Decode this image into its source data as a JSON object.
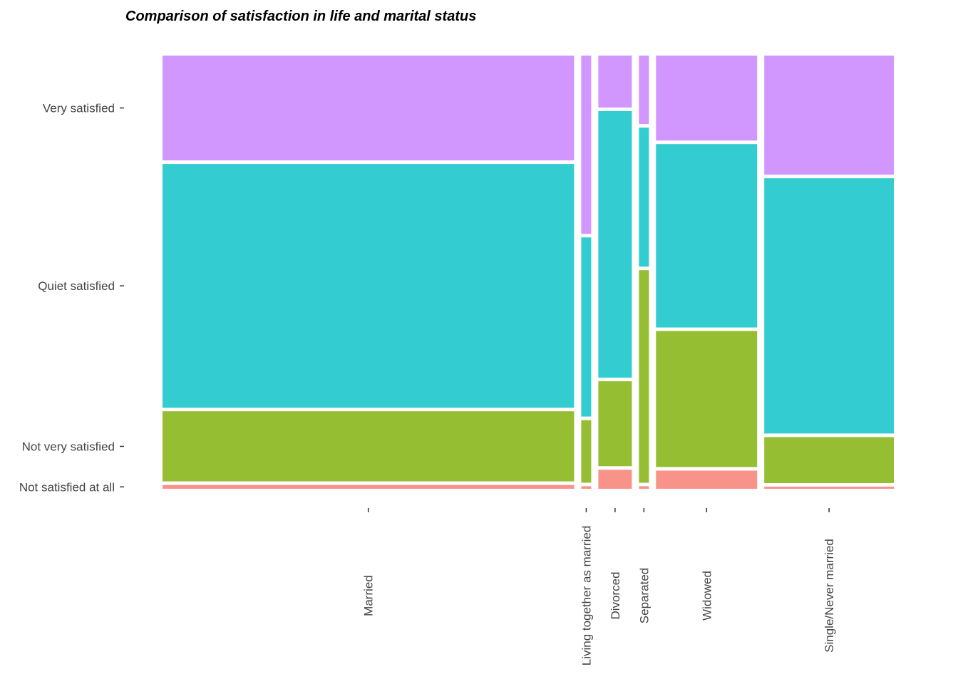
{
  "chart_data": {
    "type": "mosaic",
    "title": "Comparison of satisfaction in life and marital status",
    "categories": [
      "Married",
      "Living together as married",
      "Divorced",
      "Separated",
      "Widowed",
      "Single/Never married"
    ],
    "category_widths": [
      0.578,
      0.014,
      0.047,
      0.014,
      0.142,
      0.182
    ],
    "levels": [
      "Not satisfied at all",
      "Not very satisfied",
      "Quiet satisfied",
      "Very satisfied"
    ],
    "series": [
      {
        "level": "Not satisfied at all",
        "color": "#F8938A",
        "values": [
          0.009,
          0.006,
          0.045,
          0.006,
          0.043,
          0.005
        ]
      },
      {
        "level": "Not very satisfied",
        "color": "#96BE33",
        "values": [
          0.166,
          0.148,
          0.201,
          0.503,
          0.322,
          0.109
        ]
      },
      {
        "level": "Quiet satisfied",
        "color": "#33CCD1",
        "values": [
          0.577,
          0.424,
          0.631,
          0.329,
          0.434,
          0.604
        ]
      },
      {
        "level": "Very satisfied",
        "color": "#D296FF",
        "values": [
          0.248,
          0.422,
          0.123,
          0.162,
          0.201,
          0.282
        ]
      }
    ],
    "ytick_labels": [
      "Very satisfied",
      "Quiet satisfied",
      "Not very satisfied",
      "Not satisfied at all"
    ],
    "xlabel": "",
    "ylabel": "",
    "grid": false,
    "legend": "none"
  }
}
